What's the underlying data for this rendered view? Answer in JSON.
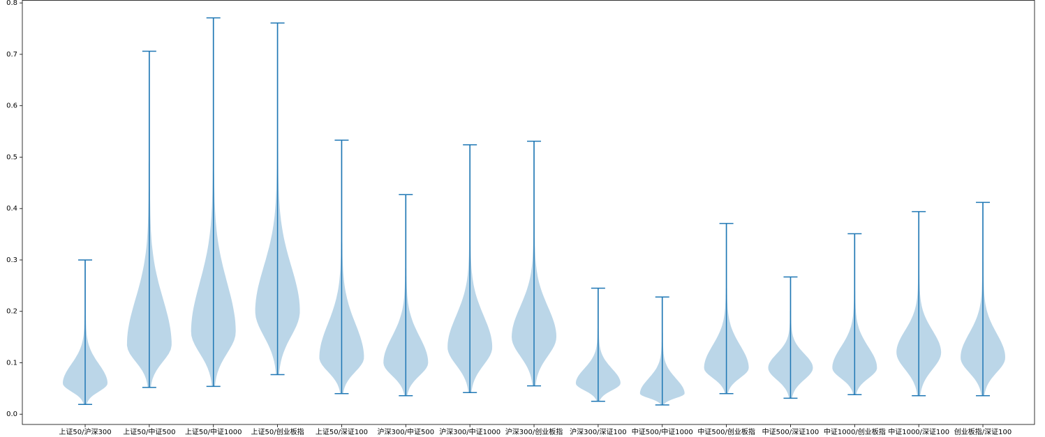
{
  "chart_data": {
    "type": "violin",
    "color": "#1f77b4",
    "categories": [
      "上证50/沪深300",
      "上证50/中证500",
      "上证50/中证1000",
      "上证50/创业板指",
      "上证50/深证100",
      "沪深300/中证500",
      "沪深300/中证1000",
      "沪深300/创业板指",
      "沪深300/深证100",
      "中证500/中证1000",
      "中证500/创业板指",
      "中证500/深证100",
      "中证1000/创业板指",
      "中证1000/深证100",
      "创业板指/深证100"
    ],
    "min": [
      0.019,
      0.052,
      0.054,
      0.077,
      0.04,
      0.036,
      0.042,
      0.055,
      0.025,
      0.018,
      0.04,
      0.031,
      0.038,
      0.036,
      0.036
    ],
    "peak": [
      0.06,
      0.135,
      0.16,
      0.2,
      0.11,
      0.1,
      0.13,
      0.15,
      0.06,
      0.04,
      0.09,
      0.09,
      0.09,
      0.12,
      0.11
    ],
    "max": [
      0.3,
      0.706,
      0.771,
      0.761,
      0.533,
      0.427,
      0.524,
      0.531,
      0.245,
      0.228,
      0.371,
      0.267,
      0.351,
      0.394,
      0.412
    ],
    "ylim": [
      -0.02,
      0.805
    ],
    "yticks": [
      {
        "value": 0,
        "label": "0.0"
      },
      0.1,
      0.2,
      0.3,
      0.4,
      0.5,
      0.6,
      0.7,
      0.8
    ]
  }
}
